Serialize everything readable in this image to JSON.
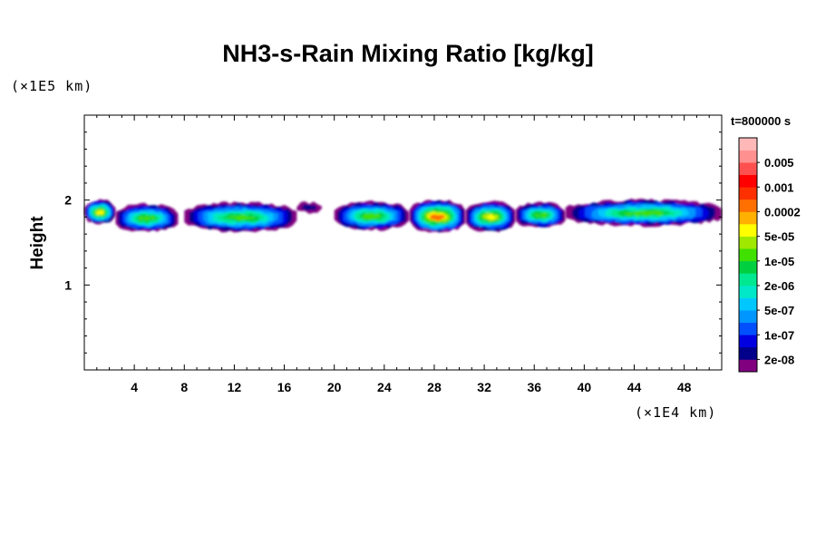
{
  "chart_data": {
    "type": "heatmap",
    "title": "NH3-s-Rain Mixing Ratio [kg/kg]",
    "ylabel": "Height",
    "xlabel": "",
    "x_unit_label": "(×1E4 km)",
    "y_unit_label": "(×1E5 km)",
    "time_label": "t=800000 s",
    "xlim": [
      0,
      51
    ],
    "ylim": [
      0,
      3
    ],
    "x_ticks": [
      4,
      8,
      12,
      16,
      20,
      24,
      28,
      32,
      36,
      40,
      44,
      48
    ],
    "y_ticks": [
      1,
      2
    ],
    "grid": false,
    "legend_position": "right",
    "colorbar": {
      "colors": [
        "#800080",
        "#00008b",
        "#0000e0",
        "#0050ff",
        "#0096ff",
        "#00c8ff",
        "#00e8c8",
        "#00e890",
        "#00d040",
        "#40e000",
        "#a0e800",
        "#ffff00",
        "#ffb000",
        "#ff7000",
        "#ff3000",
        "#ff0000",
        "#ff5050",
        "#ff9090",
        "#ffb8b8"
      ],
      "labels": [
        "2e-08",
        "1e-07",
        "5e-07",
        "2e-06",
        "1e-05",
        "5e-05",
        "0.0002",
        "0.001",
        "0.005"
      ]
    },
    "cloud_segments": [
      {
        "x_start": 0.0,
        "x_end": 2.5,
        "y_bottom": 1.72,
        "y_top": 2.0,
        "peak": "5e-05"
      },
      {
        "x_start": 2.5,
        "x_end": 7.5,
        "y_bottom": 1.63,
        "y_top": 1.95,
        "peak": "1e-05"
      },
      {
        "x_start": 8.0,
        "x_end": 17.0,
        "y_bottom": 1.63,
        "y_top": 1.97,
        "peak": "1e-05"
      },
      {
        "x_start": 17.0,
        "x_end": 19.0,
        "y_bottom": 1.85,
        "y_top": 1.97,
        "peak": "2e-08"
      },
      {
        "x_start": 20.0,
        "x_end": 26.0,
        "y_bottom": 1.65,
        "y_top": 1.98,
        "peak": "1e-05"
      },
      {
        "x_start": 26.0,
        "x_end": 30.5,
        "y_bottom": 1.62,
        "y_top": 2.0,
        "peak": "0.0002"
      },
      {
        "x_start": 30.5,
        "x_end": 34.5,
        "y_bottom": 1.63,
        "y_top": 1.98,
        "peak": "5e-05"
      },
      {
        "x_start": 34.5,
        "x_end": 38.5,
        "y_bottom": 1.68,
        "y_top": 1.97,
        "peak": "1e-05"
      },
      {
        "x_start": 38.5,
        "x_end": 51.0,
        "y_bottom": 1.7,
        "y_top": 2.0,
        "peak": "1e-05"
      }
    ]
  }
}
